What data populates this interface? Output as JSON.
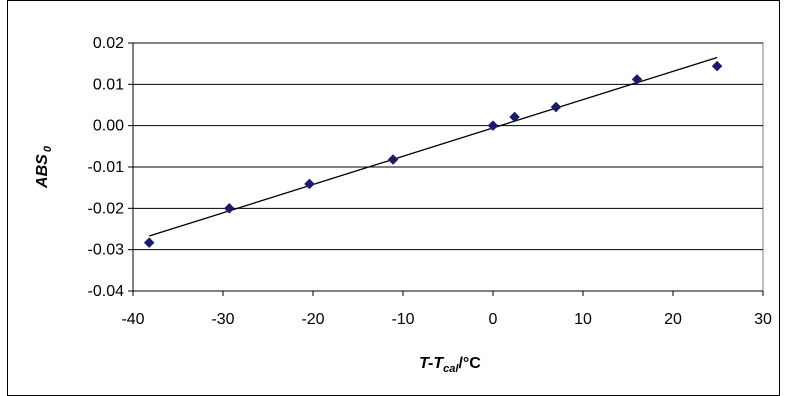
{
  "chart_data": {
    "type": "scatter",
    "title": "",
    "xlabel": {
      "main": "T-T",
      "sub": "cal",
      "unit": "/°C"
    },
    "ylabel": {
      "main": "ABS",
      "sub": "0"
    },
    "xlim": [
      -40,
      30
    ],
    "ylim": [
      -0.04,
      0.02
    ],
    "x_ticks": [
      -40,
      -30,
      -20,
      -10,
      0,
      10,
      20,
      30
    ],
    "x_tick_labels": [
      "-40",
      "-30",
      "-20",
      "-10",
      "0",
      "10",
      "20",
      "30"
    ],
    "y_ticks": [
      0.02,
      0.01,
      0.0,
      -0.01,
      -0.02,
      -0.03,
      -0.04
    ],
    "y_tick_labels": [
      "0.02",
      "0.01",
      "0.00",
      "-0.01",
      "-0.02",
      "-0.03",
      "-0.04"
    ],
    "grid": {
      "horizontal": true,
      "vertical": false
    },
    "legend": "none",
    "series": [
      {
        "type": "scatter",
        "marker": "diamond",
        "color": "#1a1a6e",
        "x": [
          -38.2,
          -29.3,
          -20.4,
          -11.1,
          0.0,
          2.4,
          7.0,
          16.0,
          24.9
        ],
        "y": [
          -0.0283,
          -0.02,
          -0.0141,
          -0.0082,
          0.0,
          0.0021,
          0.0045,
          0.0112,
          0.0144
        ]
      },
      {
        "type": "line",
        "color": "#000000",
        "x": [
          -38.2,
          24.9
        ],
        "y": [
          -0.0267,
          0.0165
        ]
      }
    ]
  }
}
